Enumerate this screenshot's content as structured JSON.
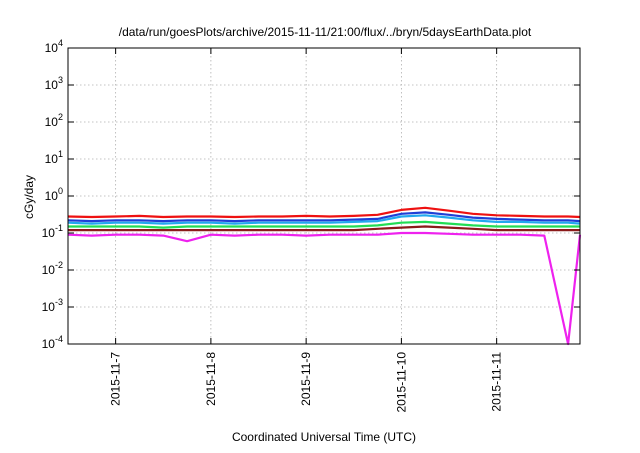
{
  "chart_data": {
    "type": "line",
    "title": "/data/run/goesPlots/archive/2015-11-11/21:00/flux/../bryn/5daysEarthData.plot",
    "xlabel": "Coordinated Universal Time (UTC)",
    "ylabel": "cGy/day",
    "yscale": "log",
    "ylim": [
      0.0001,
      10000
    ],
    "xlim": [
      "2015-11-06T12:00",
      "2015-11-11T21:00"
    ],
    "grid": true,
    "x_ticks": [
      "2015-11-7",
      "2015-11-8",
      "2015-11-9",
      "2015-11-10",
      "2015-11-11"
    ],
    "y_ticks": [
      {
        "base": "10",
        "exp": "-4",
        "value": 0.0001
      },
      {
        "base": "10",
        "exp": "-3",
        "value": 0.001
      },
      {
        "base": "10",
        "exp": "-2",
        "value": 0.01
      },
      {
        "base": "10",
        "exp": "-1",
        "value": 0.1
      },
      {
        "base": "10",
        "exp": "0",
        "value": 1
      },
      {
        "base": "10",
        "exp": "1",
        "value": 10
      },
      {
        "base": "10",
        "exp": "2",
        "value": 100
      },
      {
        "base": "10",
        "exp": "3",
        "value": 1000
      },
      {
        "base": "10",
        "exp": "4",
        "value": 10000
      }
    ],
    "x": [
      "2015-11-06T12:00",
      "2015-11-06T18:00",
      "2015-11-07T00:00",
      "2015-11-07T06:00",
      "2015-11-07T12:00",
      "2015-11-07T18:00",
      "2015-11-08T00:00",
      "2015-11-08T06:00",
      "2015-11-08T12:00",
      "2015-11-08T18:00",
      "2015-11-09T00:00",
      "2015-11-09T06:00",
      "2015-11-09T12:00",
      "2015-11-09T18:00",
      "2015-11-10T00:00",
      "2015-11-10T06:00",
      "2015-11-10T12:00",
      "2015-11-10T18:00",
      "2015-11-11T00:00",
      "2015-11-11T06:00",
      "2015-11-11T12:00",
      "2015-11-11T18:00",
      "2015-11-11T21:00"
    ],
    "series": [
      {
        "color": "#ee1111",
        "values": [
          0.28,
          0.27,
          0.28,
          0.29,
          0.27,
          0.28,
          0.28,
          0.27,
          0.28,
          0.28,
          0.29,
          0.28,
          0.29,
          0.31,
          0.42,
          0.48,
          0.4,
          0.33,
          0.3,
          0.29,
          0.28,
          0.28,
          0.27
        ]
      },
      {
        "color": "#1f3fd6",
        "values": [
          0.22,
          0.21,
          0.22,
          0.22,
          0.21,
          0.22,
          0.22,
          0.21,
          0.22,
          0.22,
          0.22,
          0.22,
          0.23,
          0.24,
          0.33,
          0.36,
          0.31,
          0.26,
          0.24,
          0.23,
          0.22,
          0.22,
          0.21
        ]
      },
      {
        "color": "#22a8ee",
        "values": [
          0.19,
          0.18,
          0.19,
          0.19,
          0.18,
          0.19,
          0.19,
          0.18,
          0.19,
          0.19,
          0.19,
          0.19,
          0.2,
          0.21,
          0.28,
          0.3,
          0.26,
          0.22,
          0.2,
          0.2,
          0.19,
          0.19,
          0.18
        ]
      },
      {
        "color": "#22dd55",
        "values": [
          0.15,
          0.15,
          0.15,
          0.15,
          0.14,
          0.15,
          0.15,
          0.15,
          0.15,
          0.15,
          0.15,
          0.15,
          0.15,
          0.16,
          0.19,
          0.2,
          0.18,
          0.16,
          0.15,
          0.15,
          0.15,
          0.15,
          0.15
        ]
      },
      {
        "color": "#8b1a1a",
        "values": [
          0.12,
          0.12,
          0.12,
          0.12,
          0.12,
          0.12,
          0.12,
          0.12,
          0.12,
          0.12,
          0.12,
          0.12,
          0.12,
          0.13,
          0.14,
          0.15,
          0.14,
          0.13,
          0.12,
          0.12,
          0.12,
          0.12,
          0.12
        ]
      },
      {
        "color": "#ee22ee",
        "values": [
          0.09,
          0.085,
          0.09,
          0.09,
          0.085,
          0.06,
          0.09,
          0.085,
          0.09,
          0.09,
          0.085,
          0.09,
          0.09,
          0.09,
          0.1,
          0.1,
          0.095,
          0.09,
          0.09,
          0.09,
          0.085,
          0.0001,
          0.09
        ]
      }
    ]
  }
}
